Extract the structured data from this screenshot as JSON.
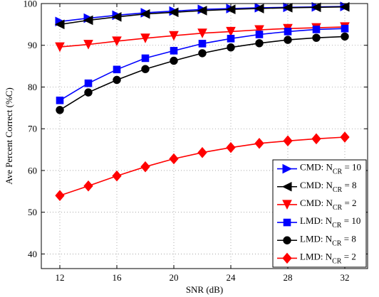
{
  "chart_data": {
    "type": "line",
    "xlabel": "SNR (dB)",
    "ylabel": "Ave Percent Correct (%C)",
    "xlim": [
      10.7,
      33.6
    ],
    "ylim": [
      36.5,
      100
    ],
    "xticks": [
      12,
      16,
      20,
      24,
      28,
      32
    ],
    "yticks": [
      40,
      50,
      60,
      70,
      80,
      90,
      100
    ],
    "grid": true,
    "legend_position": "bottom-right",
    "x": [
      12,
      14,
      16,
      18,
      20,
      22,
      24,
      26,
      28,
      30,
      32
    ],
    "series": [
      {
        "legend_main": "CMD: N",
        "legend_sub": "CR",
        "legend_tail": " = 10",
        "color": "#0000ff",
        "marker": "triangle-right",
        "values": [
          95.7,
          96.5,
          97.2,
          97.8,
          98.2,
          98.6,
          98.8,
          99.0,
          99.1,
          99.2,
          99.3
        ]
      },
      {
        "legend_main": "CMD: N",
        "legend_sub": "CR",
        "legend_tail": " = 8",
        "color": "#000000",
        "marker": "triangle-left",
        "values": [
          95.0,
          96.0,
          96.8,
          97.5,
          97.9,
          98.3,
          98.6,
          98.8,
          99.0,
          99.1,
          99.2
        ]
      },
      {
        "legend_main": "CMD: N",
        "legend_sub": "CR",
        "legend_tail": " = 2",
        "color": "#ff0000",
        "marker": "triangle-down",
        "values": [
          89.6,
          90.2,
          91.0,
          91.7,
          92.3,
          92.9,
          93.3,
          93.7,
          94.0,
          94.2,
          94.4
        ]
      },
      {
        "legend_main": "LMD: N",
        "legend_sub": "CR",
        "legend_tail": " = 10",
        "color": "#0000ff",
        "marker": "square",
        "values": [
          76.8,
          80.9,
          84.2,
          86.9,
          88.7,
          90.4,
          91.6,
          92.6,
          93.3,
          93.8,
          94.0
        ]
      },
      {
        "legend_main": "LMD: N",
        "legend_sub": "CR",
        "legend_tail": " = 8",
        "color": "#000000",
        "marker": "circle",
        "values": [
          74.5,
          78.7,
          81.7,
          84.3,
          86.3,
          88.1,
          89.5,
          90.5,
          91.3,
          91.8,
          92.1
        ]
      },
      {
        "legend_main": "LMD: N",
        "legend_sub": "CR",
        "legend_tail": " = 2",
        "color": "#ff0000",
        "marker": "diamond",
        "values": [
          54.0,
          56.3,
          58.7,
          60.9,
          62.8,
          64.3,
          65.5,
          66.5,
          67.1,
          67.6,
          68.0
        ]
      }
    ]
  }
}
